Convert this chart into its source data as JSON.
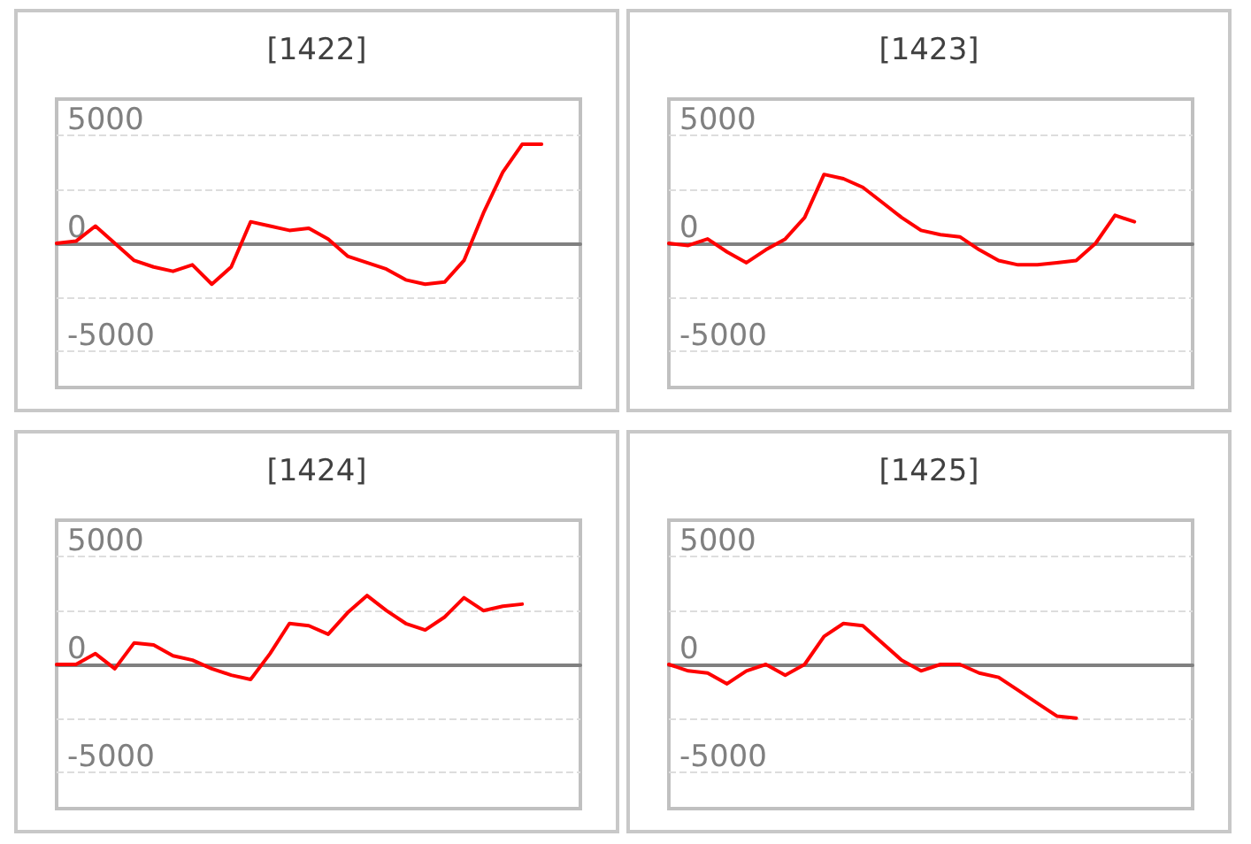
{
  "chart_data": [
    {
      "type": "line",
      "title": "[1422]",
      "categories": [
        null,
        null,
        null,
        null,
        null,
        null,
        null,
        null,
        null,
        null,
        null,
        null,
        null,
        null,
        null,
        null,
        null,
        null,
        null,
        null,
        null,
        null,
        null,
        null,
        null,
        null,
        null,
        null
      ],
      "series": [
        {
          "color": "#ff0000",
          "values": [
            0,
            100,
            800,
            0,
            -800,
            -1100,
            -1300,
            -1000,
            -1900,
            -1100,
            1000,
            800,
            600,
            700,
            200,
            -600,
            -900,
            -1200,
            -1700,
            -1900,
            -1800,
            -800,
            1400,
            3300,
            4600,
            4600,
            null,
            null
          ]
        }
      ],
      "ylim": [
        -6700,
        6700
      ],
      "yticks": [
        {
          "value": -5000,
          "label": "-5000"
        },
        {
          "value": -2500,
          "label": null
        },
        {
          "value": 0,
          "label": "0"
        },
        {
          "value": 2500,
          "label": null
        },
        {
          "value": 5000,
          "label": "5000"
        }
      ],
      "grid": "y",
      "tick_labels": "y",
      "marker": "none"
    },
    {
      "type": "line",
      "title": "[1423]",
      "categories": [
        null,
        null,
        null,
        null,
        null,
        null,
        null,
        null,
        null,
        null,
        null,
        null,
        null,
        null,
        null,
        null,
        null,
        null,
        null,
        null,
        null,
        null,
        null,
        null,
        null,
        null,
        null,
        null
      ],
      "series": [
        {
          "color": "#ff0000",
          "values": [
            0,
            -100,
            200,
            -400,
            -900,
            -300,
            200,
            1200,
            3200,
            3000,
            2600,
            1900,
            1200,
            600,
            400,
            300,
            -300,
            -800,
            -1000,
            -1000,
            -900,
            -800,
            0,
            1300,
            1000,
            null,
            null,
            null
          ]
        }
      ],
      "ylim": [
        -6700,
        6700
      ],
      "yticks": [
        {
          "value": -5000,
          "label": "-5000"
        },
        {
          "value": -2500,
          "label": null
        },
        {
          "value": 0,
          "label": "0"
        },
        {
          "value": 2500,
          "label": null
        },
        {
          "value": 5000,
          "label": "5000"
        }
      ],
      "grid": "y",
      "tick_labels": "y",
      "marker": "none"
    },
    {
      "type": "line",
      "title": "[1424]",
      "categories": [
        null,
        null,
        null,
        null,
        null,
        null,
        null,
        null,
        null,
        null,
        null,
        null,
        null,
        null,
        null,
        null,
        null,
        null,
        null,
        null,
        null,
        null,
        null,
        null,
        null,
        null,
        null,
        null
      ],
      "series": [
        {
          "color": "#ff0000",
          "values": [
            0,
            0,
            500,
            -200,
            1000,
            900,
            400,
            200,
            -200,
            -500,
            -700,
            500,
            1900,
            1800,
            1400,
            2400,
            3200,
            2500,
            1900,
            1600,
            2200,
            3100,
            2500,
            2700,
            2800,
            null,
            null,
            null
          ]
        }
      ],
      "ylim": [
        -6700,
        6700
      ],
      "yticks": [
        {
          "value": -5000,
          "label": "-5000"
        },
        {
          "value": -2500,
          "label": null
        },
        {
          "value": 0,
          "label": "0"
        },
        {
          "value": 2500,
          "label": null
        },
        {
          "value": 5000,
          "label": "5000"
        }
      ],
      "grid": "y",
      "tick_labels": "y",
      "marker": "none"
    },
    {
      "type": "line",
      "title": "[1425]",
      "categories": [
        null,
        null,
        null,
        null,
        null,
        null,
        null,
        null,
        null,
        null,
        null,
        null,
        null,
        null,
        null,
        null,
        null,
        null,
        null,
        null,
        null,
        null,
        null,
        null,
        null,
        null,
        null,
        null
      ],
      "series": [
        {
          "color": "#ff0000",
          "values": [
            0,
            -300,
            -400,
            -900,
            -300,
            0,
            -500,
            0,
            1300,
            1900,
            1800,
            1000,
            200,
            -300,
            0,
            0,
            -400,
            -600,
            -1200,
            -1800,
            -2400,
            -2500,
            null,
            null,
            null,
            null,
            null,
            null
          ]
        }
      ],
      "ylim": [
        -6700,
        6700
      ],
      "yticks": [
        {
          "value": -5000,
          "label": "-5000"
        },
        {
          "value": -2500,
          "label": null
        },
        {
          "value": 0,
          "label": "0"
        },
        {
          "value": 2500,
          "label": null
        },
        {
          "value": 5000,
          "label": "5000"
        }
      ],
      "grid": "y",
      "tick_labels": "y",
      "marker": "none"
    }
  ]
}
